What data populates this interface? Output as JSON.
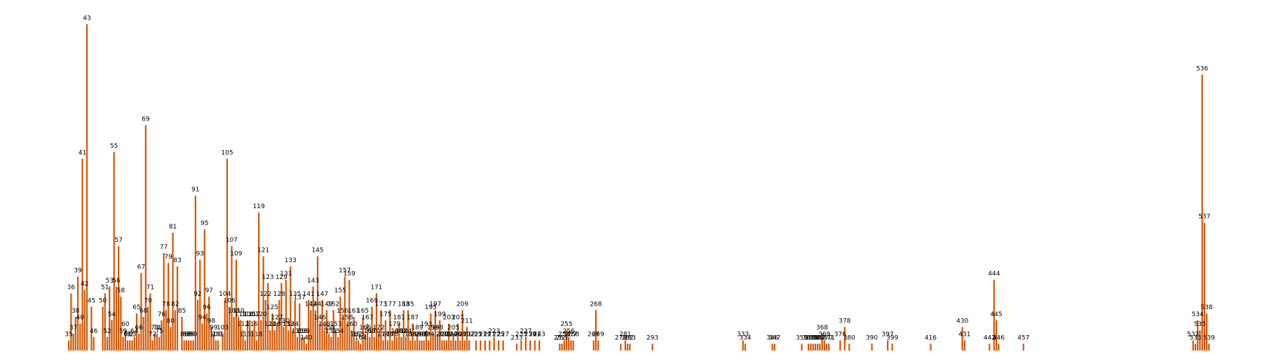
{
  "chart_data": {
    "type": "bar",
    "title": "",
    "xlabel": "",
    "ylabel": "",
    "bar_color": "#d45500",
    "grid": false,
    "show_axes": false,
    "xlim": [
      30,
      542
    ],
    "ylim": [
      0,
      100
    ],
    "points": [
      {
        "x": 35,
        "y": 3
      },
      {
        "x": 36,
        "y": 17
      },
      {
        "x": 37,
        "y": 5
      },
      {
        "x": 38,
        "y": 10
      },
      {
        "x": 39,
        "y": 22
      },
      {
        "x": 40,
        "y": 8
      },
      {
        "x": 41,
        "y": 57
      },
      {
        "x": 42,
        "y": 18
      },
      {
        "x": 43,
        "y": 97
      },
      {
        "x": 45,
        "y": 13
      },
      {
        "x": 46,
        "y": 4
      },
      {
        "x": 50,
        "y": 13
      },
      {
        "x": 51,
        "y": 17
      },
      {
        "x": 52,
        "y": 4
      },
      {
        "x": 53,
        "y": 19
      },
      {
        "x": 54,
        "y": 9
      },
      {
        "x": 55,
        "y": 59
      },
      {
        "x": 56,
        "y": 19
      },
      {
        "x": 57,
        "y": 31
      },
      {
        "x": 58,
        "y": 16
      },
      {
        "x": 59,
        "y": 4
      },
      {
        "x": 60,
        "y": 6
      },
      {
        "x": 61,
        "y": 3
      },
      {
        "x": 62,
        "y": 3
      },
      {
        "x": 63,
        "y": 3
      },
      {
        "x": 64,
        "y": 4
      },
      {
        "x": 65,
        "y": 11
      },
      {
        "x": 66,
        "y": 5
      },
      {
        "x": 67,
        "y": 23
      },
      {
        "x": 68,
        "y": 10
      },
      {
        "x": 69,
        "y": 67
      },
      {
        "x": 70,
        "y": 13
      },
      {
        "x": 71,
        "y": 17
      },
      {
        "x": 72,
        "y": 3
      },
      {
        "x": 73,
        "y": 5
      },
      {
        "x": 74,
        "y": 5
      },
      {
        "x": 75,
        "y": 4
      },
      {
        "x": 76,
        "y": 9
      },
      {
        "x": 77,
        "y": 29
      },
      {
        "x": 78,
        "y": 12
      },
      {
        "x": 79,
        "y": 26
      },
      {
        "x": 80,
        "y": 7
      },
      {
        "x": 81,
        "y": 35
      },
      {
        "x": 82,
        "y": 12
      },
      {
        "x": 83,
        "y": 25
      },
      {
        "x": 85,
        "y": 10
      },
      {
        "x": 86,
        "y": 3
      },
      {
        "x": 87,
        "y": 3
      },
      {
        "x": 88,
        "y": 3
      },
      {
        "x": 89,
        "y": 3
      },
      {
        "x": 90,
        "y": 3
      },
      {
        "x": 91,
        "y": 46
      },
      {
        "x": 92,
        "y": 15
      },
      {
        "x": 93,
        "y": 27
      },
      {
        "x": 94,
        "y": 8
      },
      {
        "x": 95,
        "y": 36
      },
      {
        "x": 96,
        "y": 11
      },
      {
        "x": 97,
        "y": 16
      },
      {
        "x": 98,
        "y": 7
      },
      {
        "x": 99,
        "y": 5
      },
      {
        "x": 100,
        "y": 3
      },
      {
        "x": 101,
        "y": 3
      },
      {
        "x": 103,
        "y": 5
      },
      {
        "x": 104,
        "y": 15
      },
      {
        "x": 105,
        "y": 57
      },
      {
        "x": 106,
        "y": 13
      },
      {
        "x": 107,
        "y": 31
      },
      {
        "x": 108,
        "y": 10
      },
      {
        "x": 109,
        "y": 27
      },
      {
        "x": 110,
        "y": 10
      },
      {
        "x": 111,
        "y": 9
      },
      {
        "x": 112,
        "y": 6
      },
      {
        "x": 113,
        "y": 3
      },
      {
        "x": 114,
        "y": 9
      },
      {
        "x": 115,
        "y": 9
      },
      {
        "x": 116,
        "y": 6
      },
      {
        "x": 117,
        "y": 9
      },
      {
        "x": 118,
        "y": 3
      },
      {
        "x": 119,
        "y": 41
      },
      {
        "x": 120,
        "y": 9
      },
      {
        "x": 121,
        "y": 28
      },
      {
        "x": 122,
        "y": 15
      },
      {
        "x": 123,
        "y": 20
      },
      {
        "x": 124,
        "y": 6
      },
      {
        "x": 125,
        "y": 11
      },
      {
        "x": 126,
        "y": 6
      },
      {
        "x": 127,
        "y": 8
      },
      {
        "x": 128,
        "y": 15
      },
      {
        "x": 129,
        "y": 20
      },
      {
        "x": 130,
        "y": 7
      },
      {
        "x": 131,
        "y": 21
      },
      {
        "x": 132,
        "y": 6
      },
      {
        "x": 133,
        "y": 25
      },
      {
        "x": 134,
        "y": 6
      },
      {
        "x": 135,
        "y": 15
      },
      {
        "x": 136,
        "y": 4
      },
      {
        "x": 137,
        "y": 14
      },
      {
        "x": 138,
        "y": 4
      },
      {
        "x": 139,
        "y": 4
      },
      {
        "x": 140,
        "y": 2
      },
      {
        "x": 141,
        "y": 15
      },
      {
        "x": 142,
        "y": 12
      },
      {
        "x": 143,
        "y": 19
      },
      {
        "x": 144,
        "y": 12
      },
      {
        "x": 145,
        "y": 28
      },
      {
        "x": 146,
        "y": 8
      },
      {
        "x": 147,
        "y": 15
      },
      {
        "x": 148,
        "y": 6
      },
      {
        "x": 149,
        "y": 12
      },
      {
        "x": 150,
        "y": 5
      },
      {
        "x": 151,
        "y": 4
      },
      {
        "x": 152,
        "y": 12
      },
      {
        "x": 153,
        "y": 6
      },
      {
        "x": 154,
        "y": 4
      },
      {
        "x": 155,
        "y": 16
      },
      {
        "x": 156,
        "y": 10
      },
      {
        "x": 157,
        "y": 22
      },
      {
        "x": 158,
        "y": 8
      },
      {
        "x": 159,
        "y": 21
      },
      {
        "x": 160,
        "y": 6
      },
      {
        "x": 161,
        "y": 10
      },
      {
        "x": 162,
        "y": 3
      },
      {
        "x": 163,
        "y": 3
      },
      {
        "x": 164,
        "y": 2
      },
      {
        "x": 165,
        "y": 10
      },
      {
        "x": 166,
        "y": 5
      },
      {
        "x": 167,
        "y": 8
      },
      {
        "x": 168,
        "y": 4
      },
      {
        "x": 169,
        "y": 13
      },
      {
        "x": 170,
        "y": 4
      },
      {
        "x": 171,
        "y": 17
      },
      {
        "x": 172,
        "y": 5
      },
      {
        "x": 173,
        "y": 12
      },
      {
        "x": 174,
        "y": 3
      },
      {
        "x": 175,
        "y": 9
      },
      {
        "x": 176,
        "y": 3
      },
      {
        "x": 177,
        "y": 12
      },
      {
        "x": 178,
        "y": 3
      },
      {
        "x": 179,
        "y": 6
      },
      {
        "x": 180,
        "y": 4
      },
      {
        "x": 181,
        "y": 8
      },
      {
        "x": 182,
        "y": 4
      },
      {
        "x": 183,
        "y": 12
      },
      {
        "x": 184,
        "y": 4
      },
      {
        "x": 185,
        "y": 12
      },
      {
        "x": 186,
        "y": 3
      },
      {
        "x": 187,
        "y": 8
      },
      {
        "x": 188,
        "y": 3
      },
      {
        "x": 189,
        "y": 5
      },
      {
        "x": 190,
        "y": 3
      },
      {
        "x": 191,
        "y": 3
      },
      {
        "x": 192,
        "y": 3
      },
      {
        "x": 193,
        "y": 6
      },
      {
        "x": 194,
        "y": 3
      },
      {
        "x": 195,
        "y": 11
      },
      {
        "x": 196,
        "y": 5
      },
      {
        "x": 197,
        "y": 12
      },
      {
        "x": 198,
        "y": 5
      },
      {
        "x": 199,
        "y": 9
      },
      {
        "x": 200,
        "y": 3
      },
      {
        "x": 201,
        "y": 3
      },
      {
        "x": 202,
        "y": 3
      },
      {
        "x": 203,
        "y": 8
      },
      {
        "x": 204,
        "y": 3
      },
      {
        "x": 205,
        "y": 5
      },
      {
        "x": 206,
        "y": 3
      },
      {
        "x": 207,
        "y": 8
      },
      {
        "x": 208,
        "y": 3
      },
      {
        "x": 209,
        "y": 12
      },
      {
        "x": 210,
        "y": 3
      },
      {
        "x": 211,
        "y": 7
      },
      {
        "x": 212,
        "y": 3
      },
      {
        "x": 215,
        "y": 3
      },
      {
        "x": 217,
        "y": 3
      },
      {
        "x": 219,
        "y": 3
      },
      {
        "x": 221,
        "y": 3
      },
      {
        "x": 223,
        "y": 4
      },
      {
        "x": 225,
        "y": 3
      },
      {
        "x": 227,
        "y": 3
      },
      {
        "x": 233,
        "y": 2
      },
      {
        "x": 235,
        "y": 3
      },
      {
        "x": 237,
        "y": 4
      },
      {
        "x": 239,
        "y": 3
      },
      {
        "x": 241,
        "y": 3
      },
      {
        "x": 243,
        "y": 3
      },
      {
        "x": 252,
        "y": 2
      },
      {
        "x": 253,
        "y": 2
      },
      {
        "x": 254,
        "y": 3
      },
      {
        "x": 255,
        "y": 6
      },
      {
        "x": 256,
        "y": 4
      },
      {
        "x": 257,
        "y": 3
      },
      {
        "x": 258,
        "y": 3
      },
      {
        "x": 267,
        "y": 3
      },
      {
        "x": 268,
        "y": 12
      },
      {
        "x": 269,
        "y": 3
      },
      {
        "x": 279,
        "y": 2
      },
      {
        "x": 281,
        "y": 3
      },
      {
        "x": 282,
        "y": 2
      },
      {
        "x": 283,
        "y": 2
      },
      {
        "x": 293,
        "y": 2
      },
      {
        "x": 333,
        "y": 3
      },
      {
        "x": 334,
        "y": 2
      },
      {
        "x": 346,
        "y": 2
      },
      {
        "x": 347,
        "y": 2
      },
      {
        "x": 359,
        "y": 2
      },
      {
        "x": 362,
        "y": 2
      },
      {
        "x": 363,
        "y": 2
      },
      {
        "x": 364,
        "y": 2
      },
      {
        "x": 365,
        "y": 2
      },
      {
        "x": 366,
        "y": 2
      },
      {
        "x": 367,
        "y": 2
      },
      {
        "x": 368,
        "y": 5
      },
      {
        "x": 369,
        "y": 3
      },
      {
        "x": 370,
        "y": 2
      },
      {
        "x": 371,
        "y": 2
      },
      {
        "x": 376,
        "y": 3
      },
      {
        "x": 378,
        "y": 7
      },
      {
        "x": 380,
        "y": 2
      },
      {
        "x": 390,
        "y": 2
      },
      {
        "x": 397,
        "y": 3
      },
      {
        "x": 399,
        "y": 2
      },
      {
        "x": 416,
        "y": 2
      },
      {
        "x": 430,
        "y": 7
      },
      {
        "x": 431,
        "y": 3
      },
      {
        "x": 442,
        "y": 2
      },
      {
        "x": 444,
        "y": 21
      },
      {
        "x": 445,
        "y": 9
      },
      {
        "x": 446,
        "y": 2
      },
      {
        "x": 457,
        "y": 2
      },
      {
        "x": 532,
        "y": 3
      },
      {
        "x": 533,
        "y": 2
      },
      {
        "x": 534,
        "y": 9
      },
      {
        "x": 535,
        "y": 6
      },
      {
        "x": 536,
        "y": 82
      },
      {
        "x": 537,
        "y": 38
      },
      {
        "x": 538,
        "y": 11
      },
      {
        "x": 539,
        "y": 2
      }
    ]
  }
}
